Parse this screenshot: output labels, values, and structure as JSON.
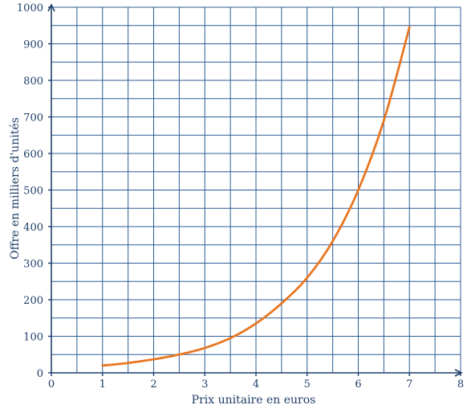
{
  "chart_data": {
    "type": "line",
    "title": "",
    "xlabel": "Prix unitaire en euros",
    "ylabel": "Offre en milliers d'unités",
    "xlim": [
      0,
      8
    ],
    "ylim": [
      0,
      1000
    ],
    "xticks": [
      "0",
      "1",
      "2",
      "3",
      "4",
      "5",
      "6",
      "7",
      "8"
    ],
    "yticks": [
      "0",
      "100",
      "200",
      "300",
      "400",
      "500",
      "600",
      "700",
      "800",
      "900",
      "1000"
    ],
    "grid": true,
    "series": [
      {
        "x": [
          1,
          1.5,
          2,
          2.5,
          3,
          3.5,
          4,
          4.5,
          5,
          5.5,
          6,
          6.5,
          7
        ],
        "y": [
          20,
          27,
          37,
          50,
          68,
          95,
          135,
          190,
          260,
          360,
          500,
          690,
          945
        ]
      }
    ]
  },
  "colors": {
    "grid": "#2c5d96",
    "axis": "#1f3f68",
    "curve": "#e87722"
  }
}
